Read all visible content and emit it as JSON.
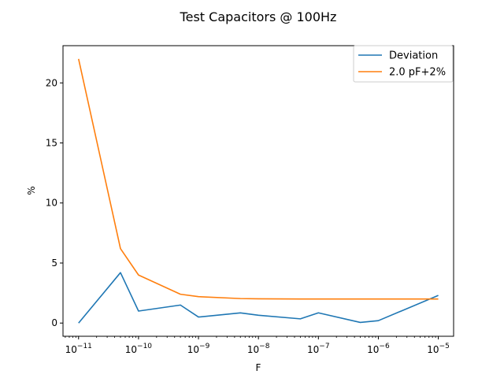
{
  "chart_data": {
    "type": "line",
    "title": "Test Capacitors @ 100Hz",
    "xlabel": "F",
    "ylabel": "%",
    "xscale": "log",
    "xlim": [
      5.5e-12,
      1.8e-05
    ],
    "ylim": [
      -1.1,
      23.1
    ],
    "grid": false,
    "legend_position": "top-right",
    "x_ticks": [
      {
        "value": 1e-11,
        "base": "10",
        "exp": "−11"
      },
      {
        "value": 1e-10,
        "base": "10",
        "exp": "−10"
      },
      {
        "value": 1e-09,
        "base": "10",
        "exp": "−9"
      },
      {
        "value": 1e-08,
        "base": "10",
        "exp": "−8"
      },
      {
        "value": 1e-07,
        "base": "10",
        "exp": "−7"
      },
      {
        "value": 1e-06,
        "base": "10",
        "exp": "−6"
      },
      {
        "value": 1e-05,
        "base": "10",
        "exp": "−5"
      }
    ],
    "y_ticks": [
      {
        "value": 0,
        "label": "0"
      },
      {
        "value": 5,
        "label": "5"
      },
      {
        "value": 10,
        "label": "10"
      },
      {
        "value": 15,
        "label": "15"
      },
      {
        "value": 20,
        "label": "20"
      }
    ],
    "series": [
      {
        "name": "Deviation",
        "color": "#1f77b4",
        "x": [
          1e-11,
          5e-11,
          1e-10,
          5e-10,
          1e-09,
          5e-09,
          1e-08,
          5e-08,
          1e-07,
          5e-07,
          1e-06,
          1e-05
        ],
        "y": [
          0.0,
          4.2,
          1.0,
          1.5,
          0.5,
          0.85,
          0.65,
          0.35,
          0.85,
          0.05,
          0.2,
          2.3
        ]
      },
      {
        "name": "2.0 pF+2%",
        "color": "#ff7f0e",
        "x": [
          1e-11,
          5e-11,
          1e-10,
          5e-10,
          1e-09,
          5e-09,
          1e-08,
          5e-08,
          1e-07,
          5e-07,
          1e-06,
          1e-05
        ],
        "y": [
          22.0,
          6.2,
          4.0,
          2.4,
          2.2,
          2.04,
          2.02,
          2.0,
          2.0,
          2.0,
          2.0,
          2.0
        ]
      }
    ]
  }
}
